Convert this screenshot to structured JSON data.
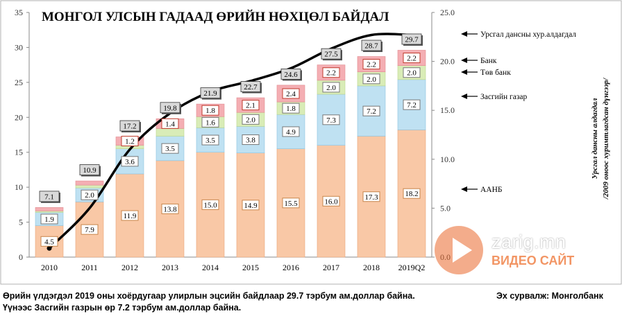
{
  "chart_data": {
    "type": "bar",
    "title": "МОНГОЛ УЛСЫН ГАДААД ӨРИЙН НӨХЦӨЛ БАЙДАЛ",
    "categories": [
      "2010",
      "2011",
      "2012",
      "2013",
      "2014",
      "2015",
      "2016",
      "2017",
      "2018",
      "2019Q2"
    ],
    "ylim": [
      0,
      35
    ],
    "y_ticks": [
      "0",
      "5",
      "10",
      "15",
      "20",
      "25",
      "30",
      "35"
    ],
    "y2lim": [
      0,
      25
    ],
    "y2_ticks": [
      "0.0",
      "5.0",
      "10.0",
      "15.0",
      "20.0",
      "25.0"
    ],
    "y2label_line1": "Урсгал дансны алдагдал",
    "y2label_line2": "/2009 оноос хуримтлагдсан дүнгээр/",
    "grid": false,
    "series": [
      {
        "name": "ААНБ",
        "color": "#f9c8a6",
        "values": [
          4.5,
          7.9,
          11.9,
          13.8,
          15.0,
          14.9,
          15.5,
          16.0,
          17.3,
          18.2
        ]
      },
      {
        "name": "Засгийн газар",
        "color": "#bfe1f2",
        "values": [
          1.9,
          2.0,
          3.6,
          3.5,
          3.5,
          3.8,
          4.9,
          7.3,
          7.2,
          7.2
        ]
      },
      {
        "name": "Төв банк",
        "color": "#d9ecb7",
        "values": [
          0.2,
          0.4,
          0.5,
          1.1,
          1.6,
          2.0,
          1.8,
          2.0,
          2.0,
          2.0
        ]
      },
      {
        "name": "Банк",
        "color": "#f4aeb3",
        "values": [
          0.5,
          0.6,
          1.2,
          1.4,
          1.8,
          2.1,
          2.4,
          2.2,
          2.2,
          2.2
        ]
      }
    ],
    "labels": {
      "ААНБ": [
        "4.5",
        "7.9",
        "11.9",
        "13.8",
        "15.0",
        "14.9",
        "15.5",
        "16.0",
        "17.3",
        "18.2"
      ],
      "Засгийн газар": [
        "1.9",
        "2.0",
        "3.6",
        "3.5",
        "3.5",
        "3.8",
        "4.9",
        "7.3",
        "7.2",
        "7.2"
      ],
      "Төв банк": [
        "",
        "",
        "",
        "",
        "1.6",
        "2.0",
        "1.8",
        "2.0",
        "2.0",
        "2.0"
      ],
      "Банк": [
        "",
        "",
        "1.2",
        "1.4",
        "1.8",
        "2.1",
        "2.4",
        "2.2",
        "2.2",
        "2.2"
      ]
    },
    "totals": [
      "7.1",
      "10.9",
      "17.2",
      "19.8",
      "21.9",
      "22.7",
      "24.6",
      "27.5",
      "28.7",
      "29.7"
    ],
    "line_series": {
      "name": "Урсгал дансны хур.алдагдал",
      "axis": "right",
      "color": "#000000",
      "values": [
        0.9,
        5.0,
        11.0,
        14.7,
        16.9,
        18.0,
        19.3,
        21.3,
        22.7,
        22.7
      ]
    },
    "legend": [
      "Урсгал дансны хур.алдагдал",
      "Банк",
      "Төв банк",
      "Засгийн газар",
      "ААНБ"
    ]
  },
  "notes": {
    "line1": "Өрийн үлдэгдэл 2019 оны хоёрдугаар улирлын эцсийн байдлаар 29.7 тэрбум ам.доллар байна.",
    "line2": "Үүнээс  Засгийн газрын өр 7.2 тэрбум ам.доллар байна.",
    "source": "Эх сурвалж: Монголбанк"
  },
  "watermark": {
    "name": "zarig.mn",
    "tagline": "ВИДЕО САЙТ"
  }
}
